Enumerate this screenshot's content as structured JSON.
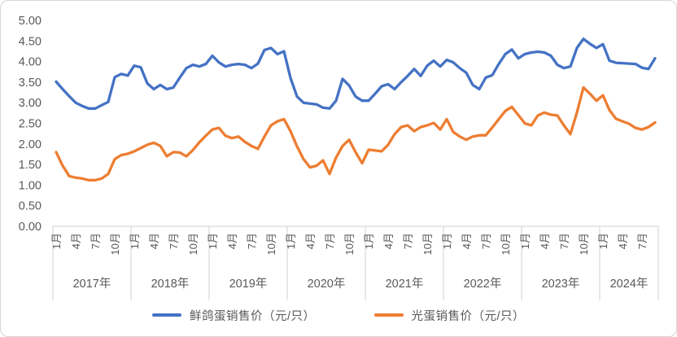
{
  "chart_data": {
    "type": "line",
    "title": "",
    "grid": "off",
    "legend_position": "bottom",
    "y_axis": {
      "min": 0,
      "max": 5,
      "step": 0.5,
      "tick_labels": [
        "5.00",
        "4.50",
        "4.00",
        "3.50",
        "3.00",
        "2.50",
        "2.00",
        "1.50",
        "1.00",
        "0.50",
        "0.00"
      ]
    },
    "x_axis": {
      "unit": "month",
      "years": [
        {
          "label": "2017年",
          "months": 12,
          "ticks": [
            {
              "at": 0,
              "label": "1月"
            },
            {
              "at": 3,
              "label": "4月"
            },
            {
              "at": 6,
              "label": "7月"
            },
            {
              "at": 9,
              "label": "10月"
            }
          ]
        },
        {
          "label": "2018年",
          "months": 12,
          "ticks": [
            {
              "at": 0,
              "label": "1月"
            },
            {
              "at": 3,
              "label": "4月"
            },
            {
              "at": 6,
              "label": "7月"
            },
            {
              "at": 9,
              "label": "10月"
            }
          ]
        },
        {
          "label": "2019年",
          "months": 12,
          "ticks": [
            {
              "at": 0,
              "label": "1月"
            },
            {
              "at": 3,
              "label": "4月"
            },
            {
              "at": 6,
              "label": "7月"
            },
            {
              "at": 9,
              "label": "10月"
            }
          ]
        },
        {
          "label": "2020年",
          "months": 12,
          "ticks": [
            {
              "at": 0,
              "label": "1月"
            },
            {
              "at": 3,
              "label": "4月"
            },
            {
              "at": 6,
              "label": "7月"
            },
            {
              "at": 9,
              "label": "10月"
            }
          ]
        },
        {
          "label": "2021年",
          "months": 12,
          "ticks": [
            {
              "at": 0,
              "label": "1月"
            },
            {
              "at": 3,
              "label": "4月"
            },
            {
              "at": 6,
              "label": "7月"
            },
            {
              "at": 9,
              "label": "10月"
            }
          ]
        },
        {
          "label": "2022年",
          "months": 12,
          "ticks": [
            {
              "at": 0,
              "label": "1月"
            },
            {
              "at": 3,
              "label": "4月"
            },
            {
              "at": 6,
              "label": "7月"
            },
            {
              "at": 9,
              "label": "10月"
            }
          ]
        },
        {
          "label": "2023年",
          "months": 12,
          "ticks": [
            {
              "at": 0,
              "label": "1月"
            },
            {
              "at": 3,
              "label": "4月"
            },
            {
              "at": 6,
              "label": "7月"
            },
            {
              "at": 9,
              "label": "10月"
            }
          ]
        },
        {
          "label": "2024年",
          "months": 9,
          "ticks": [
            {
              "at": 0,
              "label": "1月"
            },
            {
              "at": 3,
              "label": "4月"
            },
            {
              "at": 6,
              "label": "7月"
            }
          ]
        }
      ]
    },
    "series": [
      {
        "name": "鲜鸽蛋销售价（元/只）",
        "color": "#4472C4",
        "values": [
          3.51,
          3.33,
          3.16,
          3.0,
          2.92,
          2.86,
          2.86,
          2.94,
          3.02,
          3.62,
          3.7,
          3.66,
          3.9,
          3.86,
          3.47,
          3.33,
          3.43,
          3.33,
          3.37,
          3.61,
          3.84,
          3.92,
          3.88,
          3.94,
          4.14,
          3.98,
          3.88,
          3.92,
          3.94,
          3.92,
          3.84,
          3.95,
          4.28,
          4.33,
          4.18,
          4.25,
          3.6,
          3.15,
          3.0,
          2.98,
          2.96,
          2.88,
          2.86,
          3.05,
          3.58,
          3.42,
          3.15,
          3.05,
          3.05,
          3.22,
          3.4,
          3.45,
          3.33,
          3.5,
          3.65,
          3.82,
          3.65,
          3.9,
          4.02,
          3.88,
          4.04,
          3.98,
          3.84,
          3.73,
          3.43,
          3.33,
          3.61,
          3.67,
          3.94,
          4.18,
          4.29,
          4.08,
          4.18,
          4.22,
          4.24,
          4.22,
          4.14,
          3.92,
          3.84,
          3.88,
          4.33,
          4.55,
          4.43,
          4.33,
          4.42,
          4.02,
          3.97,
          3.96,
          3.95,
          3.94,
          3.85,
          3.82,
          4.08
        ]
      },
      {
        "name": "光蛋销售价（元/只）",
        "color": "#ED7D31",
        "values": [
          1.8,
          1.47,
          1.22,
          1.18,
          1.16,
          1.12,
          1.12,
          1.16,
          1.27,
          1.63,
          1.73,
          1.76,
          1.82,
          1.9,
          1.98,
          2.03,
          1.95,
          1.7,
          1.8,
          1.79,
          1.7,
          1.85,
          2.04,
          2.2,
          2.35,
          2.39,
          2.2,
          2.14,
          2.18,
          2.05,
          1.95,
          1.88,
          2.18,
          2.45,
          2.55,
          2.6,
          2.31,
          1.94,
          1.63,
          1.43,
          1.47,
          1.6,
          1.27,
          1.67,
          1.95,
          2.1,
          1.8,
          1.53,
          1.86,
          1.84,
          1.82,
          1.98,
          2.24,
          2.41,
          2.45,
          2.31,
          2.41,
          2.45,
          2.51,
          2.35,
          2.6,
          2.29,
          2.18,
          2.1,
          2.18,
          2.21,
          2.21,
          2.4,
          2.6,
          2.8,
          2.9,
          2.7,
          2.5,
          2.45,
          2.69,
          2.76,
          2.71,
          2.69,
          2.45,
          2.24,
          2.76,
          3.37,
          3.22,
          3.05,
          3.18,
          2.82,
          2.61,
          2.55,
          2.49,
          2.39,
          2.35,
          2.41,
          2.52
        ]
      }
    ],
    "axis_text_color": "#595959",
    "axis_line_color": "#D9D9D9"
  }
}
